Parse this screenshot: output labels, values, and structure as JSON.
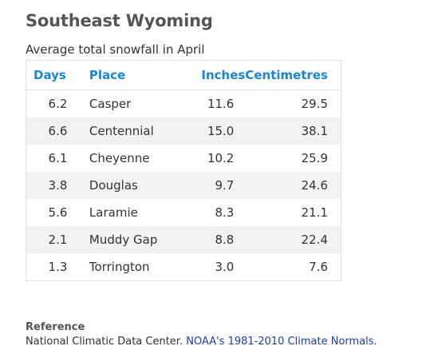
{
  "page": {
    "title": "Southeast Wyoming",
    "caption": "Average total snowfall in April"
  },
  "table": {
    "headers": {
      "days": "Days",
      "place": "Place",
      "inches": "Inches",
      "centimetres": "Centimetres"
    },
    "rows": [
      {
        "days": "6.2",
        "place": "Casper",
        "inches": "11.6",
        "centimetres": "29.5"
      },
      {
        "days": "6.6",
        "place": "Centennial",
        "inches": "15.0",
        "centimetres": "38.1"
      },
      {
        "days": "6.1",
        "place": "Cheyenne",
        "inches": "10.2",
        "centimetres": "25.9"
      },
      {
        "days": "3.8",
        "place": "Douglas",
        "inches": "9.7",
        "centimetres": "24.6"
      },
      {
        "days": "5.6",
        "place": "Laramie",
        "inches": "8.3",
        "centimetres": "21.1"
      },
      {
        "days": "2.1",
        "place": "Muddy Gap",
        "inches": "8.8",
        "centimetres": "22.4"
      },
      {
        "days": "1.3",
        "place": "Torrington",
        "inches": "3.0",
        "centimetres": "7.6"
      }
    ]
  },
  "reference": {
    "heading": "Reference",
    "source": "National Climatic Data Center.",
    "link_text": "NOAA's 1981-2010 Climate Normals."
  },
  "colors": {
    "header_blue": "#1a85d8",
    "link_blue": "#1a3fb0",
    "stripe": "#f2f2f2"
  }
}
